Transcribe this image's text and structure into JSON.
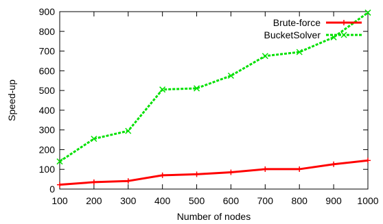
{
  "chart_data": {
    "type": "line",
    "xlabel": "Number of nodes",
    "ylabel": "Speed-up",
    "xlim": [
      100,
      1000
    ],
    "ylim": [
      0,
      900
    ],
    "xticks": [
      "100",
      "200",
      "300",
      "400",
      "500",
      "600",
      "700",
      "800",
      "900",
      "1000"
    ],
    "yticks": [
      "0",
      "100",
      "200",
      "300",
      "400",
      "500",
      "600",
      "700",
      "800",
      "900"
    ],
    "grid": false,
    "legend_position": "top-right",
    "x": [
      100,
      200,
      300,
      400,
      500,
      600,
      700,
      800,
      900,
      1000
    ],
    "series": [
      {
        "name": "Brute-force",
        "color": "#ff0000",
        "style": "solid",
        "marker": "plus",
        "values": [
          22,
          35,
          41,
          70,
          75,
          85,
          101,
          101,
          126,
          145
        ]
      },
      {
        "name": "BucketSolver",
        "color": "#00e000",
        "style": "dashed",
        "marker": "cross",
        "values": [
          140,
          255,
          295,
          505,
          511,
          575,
          675,
          695,
          770,
          895
        ]
      }
    ]
  }
}
